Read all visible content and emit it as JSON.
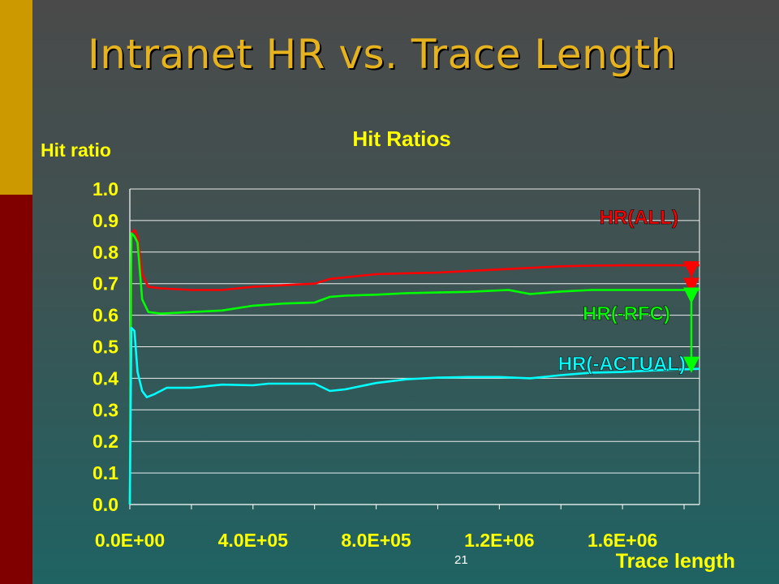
{
  "slide": {
    "title": "Intranet HR vs. Trace Length",
    "page_number": "21"
  },
  "colors": {
    "title": "#e6b31e",
    "accent_gold": "#cc9900",
    "accent_red": "#800000",
    "chart_text": "#ffff00",
    "gridline": "#ffffff",
    "hr_all": "#ff0000",
    "hr_rfc": "#00ff00",
    "hr_actual": "#00ffff"
  },
  "chart_data": {
    "type": "line",
    "title": "Hit Ratios",
    "ylabel": "Hit ratio",
    "xlabel": "Trace length",
    "xlim": [
      0,
      1850000
    ],
    "ylim": [
      0,
      1.0
    ],
    "x_ticks": [
      0,
      400000,
      800000,
      1200000,
      1600000
    ],
    "x_tick_labels": [
      "0.0E+00",
      "4.0E+05",
      "8.0E+05",
      "1.2E+06",
      "1.6E+06"
    ],
    "y_ticks": [
      0.0,
      0.1,
      0.2,
      0.3,
      0.4,
      0.5,
      0.6,
      0.7,
      0.8,
      0.9,
      1.0
    ],
    "y_tick_labels": [
      "0.0",
      "0.1",
      "0.2",
      "0.3",
      "0.4",
      "0.5",
      "0.6",
      "0.7",
      "0.8",
      "0.9",
      "1.0"
    ],
    "grid": true,
    "series": [
      {
        "name": "HR(ALL)",
        "color": "#ff0000",
        "points": [
          [
            0,
            0.0
          ],
          [
            5000,
            0.86
          ],
          [
            15000,
            0.87
          ],
          [
            25000,
            0.85
          ],
          [
            40000,
            0.73
          ],
          [
            60000,
            0.69
          ],
          [
            100000,
            0.685
          ],
          [
            200000,
            0.68
          ],
          [
            300000,
            0.68
          ],
          [
            400000,
            0.69
          ],
          [
            500000,
            0.695
          ],
          [
            600000,
            0.7
          ],
          [
            650000,
            0.715
          ],
          [
            700000,
            0.72
          ],
          [
            800000,
            0.73
          ],
          [
            900000,
            0.733
          ],
          [
            1000000,
            0.735
          ],
          [
            1100000,
            0.74
          ],
          [
            1200000,
            0.745
          ],
          [
            1300000,
            0.75
          ],
          [
            1400000,
            0.755
          ],
          [
            1500000,
            0.757
          ],
          [
            1600000,
            0.758
          ],
          [
            1700000,
            0.758
          ],
          [
            1800000,
            0.758
          ],
          [
            1850000,
            0.758
          ]
        ]
      },
      {
        "name": "HR(-RFC)",
        "color": "#00ff00",
        "points": [
          [
            0,
            0.0
          ],
          [
            5000,
            0.86
          ],
          [
            15000,
            0.85
          ],
          [
            25000,
            0.83
          ],
          [
            40000,
            0.65
          ],
          [
            60000,
            0.61
          ],
          [
            100000,
            0.605
          ],
          [
            200000,
            0.61
          ],
          [
            300000,
            0.615
          ],
          [
            400000,
            0.63
          ],
          [
            500000,
            0.637
          ],
          [
            600000,
            0.64
          ],
          [
            650000,
            0.658
          ],
          [
            700000,
            0.662
          ],
          [
            800000,
            0.665
          ],
          [
            900000,
            0.67
          ],
          [
            1000000,
            0.672
          ],
          [
            1100000,
            0.674
          ],
          [
            1230000,
            0.68
          ],
          [
            1300000,
            0.667
          ],
          [
            1400000,
            0.675
          ],
          [
            1500000,
            0.68
          ],
          [
            1600000,
            0.68
          ],
          [
            1700000,
            0.68
          ],
          [
            1850000,
            0.68
          ]
        ]
      },
      {
        "name": "HR(-ACTUAL)",
        "color": "#00ffff",
        "points": [
          [
            0,
            0.0
          ],
          [
            5000,
            0.56
          ],
          [
            15000,
            0.55
          ],
          [
            25000,
            0.42
          ],
          [
            40000,
            0.36
          ],
          [
            55000,
            0.34
          ],
          [
            80000,
            0.35
          ],
          [
            120000,
            0.37
          ],
          [
            200000,
            0.37
          ],
          [
            300000,
            0.38
          ],
          [
            400000,
            0.378
          ],
          [
            450000,
            0.383
          ],
          [
            600000,
            0.383
          ],
          [
            650000,
            0.36
          ],
          [
            700000,
            0.365
          ],
          [
            800000,
            0.385
          ],
          [
            900000,
            0.397
          ],
          [
            1000000,
            0.402
          ],
          [
            1100000,
            0.404
          ],
          [
            1200000,
            0.404
          ],
          [
            1300000,
            0.4
          ],
          [
            1400000,
            0.41
          ],
          [
            1500000,
            0.418
          ],
          [
            1600000,
            0.42
          ],
          [
            1700000,
            0.425
          ],
          [
            1850000,
            0.43
          ]
        ]
      }
    ],
    "annotations": [
      {
        "text": "HR(ALL)",
        "color": "#ff0000"
      },
      {
        "text": "HR(-RFC)",
        "color": "#00ff00"
      },
      {
        "text": "HR(-ACTUAL)",
        "color": "#00ffff"
      }
    ]
  }
}
